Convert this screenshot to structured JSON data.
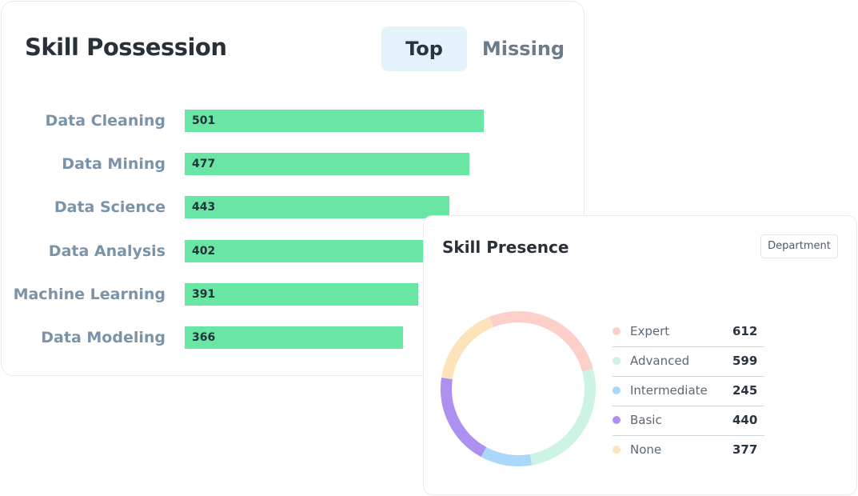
{
  "skill_possession": {
    "title": "Skill Possession",
    "tabs": [
      {
        "label": "Top",
        "active": true
      },
      {
        "label": "Missing",
        "active": false
      }
    ]
  },
  "skill_presence": {
    "title": "Skill Presence",
    "filter_button": "Department"
  },
  "colors": {
    "bar": "#6ae6a4",
    "active_tab_bg": "#e4f2fc"
  },
  "chart_data": [
    {
      "type": "bar",
      "orientation": "horizontal",
      "title": "Skill Possession",
      "categories": [
        "Data Cleaning",
        "Data Mining",
        "Data Science",
        "Data Analysis",
        "Machine Learning",
        "Data Modeling"
      ],
      "values": [
        501,
        477,
        443,
        402,
        391,
        366
      ],
      "xlim": [
        0,
        640
      ],
      "color": "#6ae6a4"
    },
    {
      "type": "pie",
      "style": "donut",
      "title": "Skill Presence",
      "categories": [
        "Expert",
        "Advanced",
        "Intermediate",
        "Basic",
        "None"
      ],
      "values": [
        612,
        599,
        245,
        440,
        377
      ],
      "colors": [
        "#fcd0c8",
        "#cdf3e3",
        "#a9d8fa",
        "#ad90ef",
        "#fde3ba"
      ]
    }
  ]
}
